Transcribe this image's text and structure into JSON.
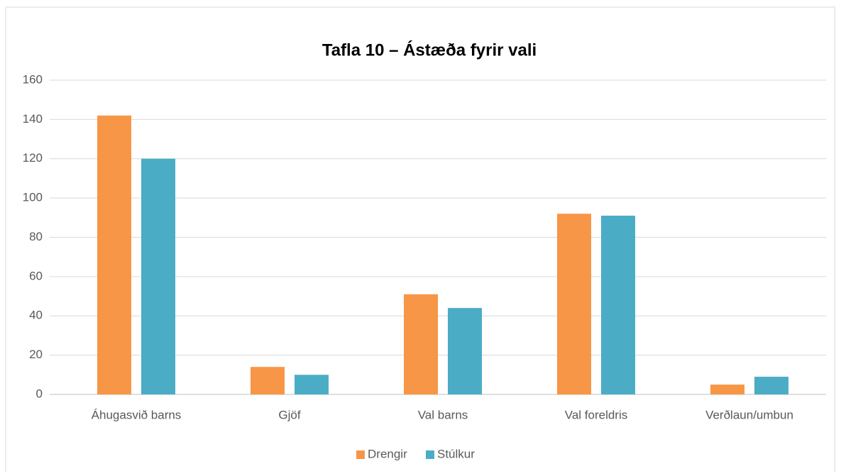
{
  "chart_data": {
    "type": "bar",
    "title": "Tafla 10 – Ástæða fyrir vali",
    "categories": [
      "Áhugasvið barns",
      "Gjöf",
      "Val barns",
      "Val foreldris",
      "Verðlaun/umbun"
    ],
    "series": [
      {
        "name": "Drengir",
        "color": "#f79646",
        "values": [
          142,
          14,
          51,
          92,
          5
        ]
      },
      {
        "name": "Stúlkur",
        "color": "#4bacc6",
        "values": [
          120,
          10,
          44,
          91,
          9
        ]
      }
    ],
    "ylim": [
      0,
      160
    ],
    "yticks": [
      0,
      20,
      40,
      60,
      80,
      100,
      120,
      140,
      160
    ],
    "grid": true,
    "legend": "bottom"
  }
}
